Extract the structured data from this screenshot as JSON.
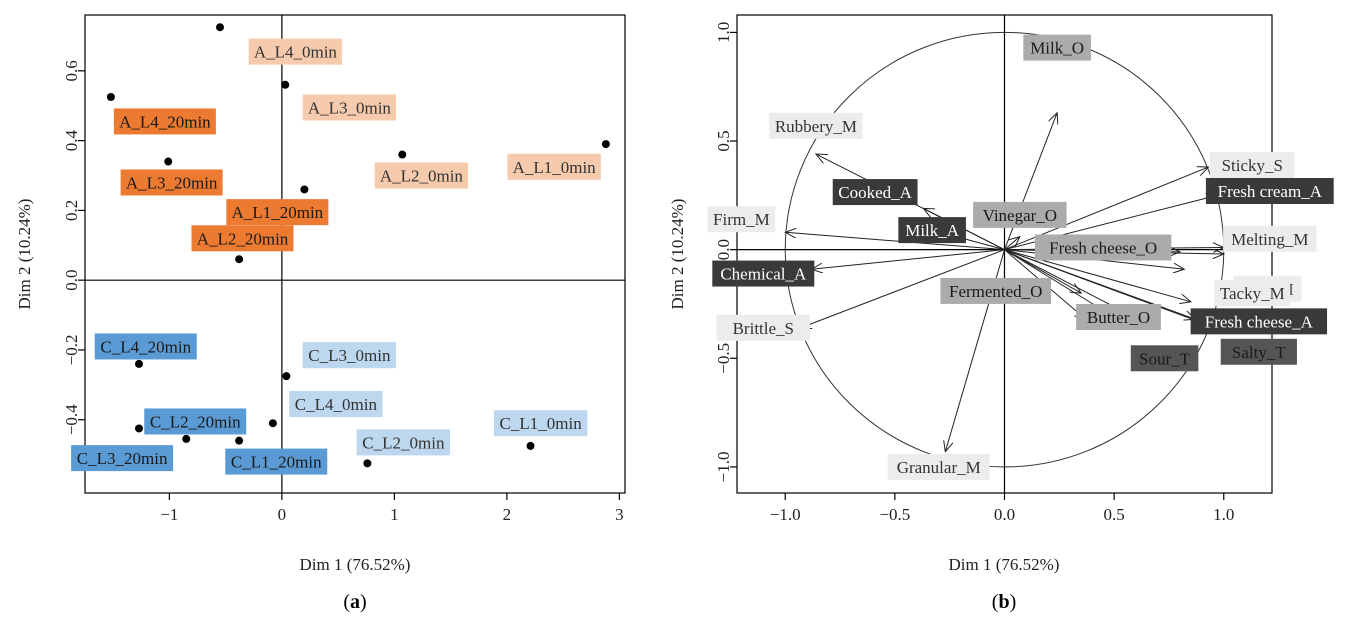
{
  "chart_data": [
    {
      "type": "scatter",
      "panel_label": "(a)",
      "panel_letter": "a",
      "xlabel": "Dim 1 (76.52%)",
      "ylabel": "Dim 2 (10.24%)",
      "xlim": [
        -1.75,
        3.05
      ],
      "ylim": [
        -0.61,
        0.76
      ],
      "xticks": [
        -1,
        0,
        1,
        2,
        3
      ],
      "yticks": [
        -0.4,
        -0.2,
        0.0,
        0.2,
        0.4,
        0.6
      ],
      "xtick_labels": [
        "−1",
        "0",
        "1",
        "2",
        "3"
      ],
      "ytick_labels": [
        "−0.4",
        "−0.2",
        "0.0",
        "0.2",
        "0.4",
        "0.6"
      ],
      "colors": {
        "A_0min": "#f6cbad",
        "A_20min": "#ec7a30",
        "C_0min": "#bdd7ee",
        "C_20min": "#5b9bd5"
      },
      "points": [
        {
          "label": "A_L4_0min",
          "group": "A_0min",
          "x": -0.55,
          "y": 0.725,
          "lx": 0.12,
          "ly": 0.655
        },
        {
          "label": "A_L3_0min",
          "group": "A_0min",
          "x": 0.03,
          "y": 0.56,
          "lx": 0.6,
          "ly": 0.495
        },
        {
          "label": "A_L2_0min",
          "group": "A_0min",
          "x": 1.07,
          "y": 0.36,
          "lx": 1.24,
          "ly": 0.3
        },
        {
          "label": "A_L1_0min",
          "group": "A_0min",
          "x": 2.88,
          "y": 0.39,
          "lx": 2.42,
          "ly": 0.325
        },
        {
          "label": "A_L4_20min",
          "group": "A_20min",
          "x": -1.52,
          "y": 0.525,
          "lx": -1.04,
          "ly": 0.455
        },
        {
          "label": "A_L3_20min",
          "group": "A_20min",
          "x": -1.01,
          "y": 0.34,
          "lx": -0.98,
          "ly": 0.28
        },
        {
          "label": "A_L1_20min",
          "group": "A_20min",
          "x": 0.2,
          "y": 0.26,
          "lx": -0.04,
          "ly": 0.195
        },
        {
          "label": "A_L2_20min",
          "group": "A_20min",
          "x": -0.38,
          "y": 0.06,
          "lx": -0.35,
          "ly": 0.12
        },
        {
          "label": "C_L3_0min",
          "group": "C_0min",
          "x": 0.04,
          "y": -0.275,
          "lx": 0.6,
          "ly": -0.215
        },
        {
          "label": "C_L4_0min",
          "group": "C_0min",
          "x": -0.08,
          "y": -0.41,
          "lx": 0.48,
          "ly": -0.355
        },
        {
          "label": "C_L2_0min",
          "group": "C_0min",
          "x": 0.76,
          "y": -0.525,
          "lx": 1.08,
          "ly": -0.465
        },
        {
          "label": "C_L1_0min",
          "group": "C_0min",
          "x": 2.21,
          "y": -0.475,
          "lx": 2.3,
          "ly": -0.41
        },
        {
          "label": "C_L4_20min",
          "group": "C_20min",
          "x": -1.27,
          "y": -0.24,
          "lx": -1.21,
          "ly": -0.19
        },
        {
          "label": "C_L2_20min",
          "group": "C_20min",
          "x": -0.85,
          "y": -0.455,
          "lx": -0.77,
          "ly": -0.405
        },
        {
          "label": "C_L3_20min",
          "group": "C_20min",
          "x": -1.27,
          "y": -0.425,
          "lx": -1.42,
          "ly": -0.51
        },
        {
          "label": "C_L1_20min",
          "group": "C_20min",
          "x": -0.38,
          "y": -0.46,
          "lx": -0.05,
          "ly": -0.52
        }
      ]
    },
    {
      "type": "vector",
      "panel_label": "(b)",
      "panel_letter": "b",
      "xlabel": "Dim 1 (76.52%)",
      "ylabel": "Dim 2 (10.24%)",
      "xlim": [
        -1.22,
        1.22
      ],
      "ylim": [
        -1.12,
        1.08
      ],
      "xticks": [
        -1.0,
        -0.5,
        0.0,
        0.5,
        1.0
      ],
      "yticks": [
        -1.0,
        -0.5,
        0.0,
        0.5,
        1.0
      ],
      "xtick_labels": [
        "−1.0",
        "−0.5",
        "0.0",
        "0.5",
        "1.0"
      ],
      "ytick_labels": [
        "−1.0",
        "−0.5",
        "0.0",
        "0.5",
        "1.0"
      ],
      "circle_radius": 1.0,
      "colors": {
        "light": "#ececec",
        "medium": "#ababab",
        "dark": "#555555",
        "darkest": "#3a3a3a"
      },
      "vectors": [
        {
          "label": "Milk_O",
          "style": "medium",
          "x": 0.24,
          "y": 0.63,
          "lx": 0.24,
          "ly": 0.93
        },
        {
          "label": "Rubbery_M",
          "style": "light",
          "x": -0.86,
          "y": 0.44,
          "lx": -0.86,
          "ly": 0.57
        },
        {
          "label": "Cooked_A",
          "style": "darkest",
          "x": -0.37,
          "y": 0.19,
          "lx": -0.59,
          "ly": 0.265
        },
        {
          "label": "Milk_A",
          "style": "darkest",
          "x": -0.33,
          "y": 0.09,
          "lx": -0.33,
          "ly": 0.09
        },
        {
          "label": "Vinegar_O",
          "style": "medium",
          "x": 0.07,
          "y": 0.06,
          "lx": 0.07,
          "ly": 0.16
        },
        {
          "label": "Firm_M",
          "style": "light",
          "x": -1.0,
          "y": 0.08,
          "lx": -1.2,
          "ly": 0.14
        },
        {
          "label": "Chemical_A",
          "style": "darkest",
          "x": -0.88,
          "y": -0.09,
          "lx": -1.1,
          "ly": -0.11
        },
        {
          "label": "Brittle_S",
          "style": "light",
          "x": -0.93,
          "y": -0.36,
          "lx": -1.1,
          "ly": -0.36
        },
        {
          "label": "Fresh cheese_O",
          "style": "medium",
          "x": 0.8,
          "y": -0.01,
          "lx": 0.45,
          "ly": 0.01
        },
        {
          "label": "Fermented_O",
          "style": "medium",
          "x": 0.35,
          "y": -0.2,
          "lx": -0.04,
          "ly": -0.19
        },
        {
          "label": "Butter_O",
          "style": "medium",
          "x": 0.5,
          "y": -0.31,
          "lx": 0.52,
          "ly": -0.31
        },
        {
          "label": "Sour_T",
          "style": "dark",
          "x": 0.59,
          "y": -0.31,
          "lx": 0.73,
          "ly": -0.5
        },
        {
          "label": "Sticky_S",
          "style": "light",
          "x": 0.93,
          "y": 0.38,
          "lx": 1.13,
          "ly": 0.39
        },
        {
          "label": "Fresh cream_A",
          "style": "darkest",
          "x": 0.97,
          "y": 0.25,
          "lx": 1.21,
          "ly": 0.27
        },
        {
          "label": "Melting_M",
          "style": "light",
          "x": 1.0,
          "y": 0.01,
          "lx": 1.21,
          "ly": 0.05
        },
        {
          "label": "Soft_M",
          "style": "light",
          "x": 1.0,
          "y": -0.02,
          "lx": 1.2,
          "ly": -0.18
        },
        {
          "label": "Tacky_M",
          "style": "light",
          "x": 0.85,
          "y": -0.24,
          "lx": 1.13,
          "ly": -0.2
        },
        {
          "label": "Fresh cheese_A",
          "style": "darkest",
          "x": 0.87,
          "y": -0.32,
          "lx": 1.16,
          "ly": -0.33
        },
        {
          "label": "Salty_T",
          "style": "dark",
          "x": 0.91,
          "y": -0.34,
          "lx": 1.16,
          "ly": -0.47
        },
        {
          "label": "Granular_M",
          "style": "light",
          "x": -0.27,
          "y": -0.93,
          "lx": -0.3,
          "ly": -1.0
        },
        {
          "label": "",
          "style": "none",
          "x": 0.82,
          "y": -0.09,
          "lx": 0,
          "ly": 0
        },
        {
          "label": "",
          "style": "none",
          "x": 0.37,
          "y": -0.32,
          "lx": 0,
          "ly": 0
        }
      ]
    }
  ]
}
